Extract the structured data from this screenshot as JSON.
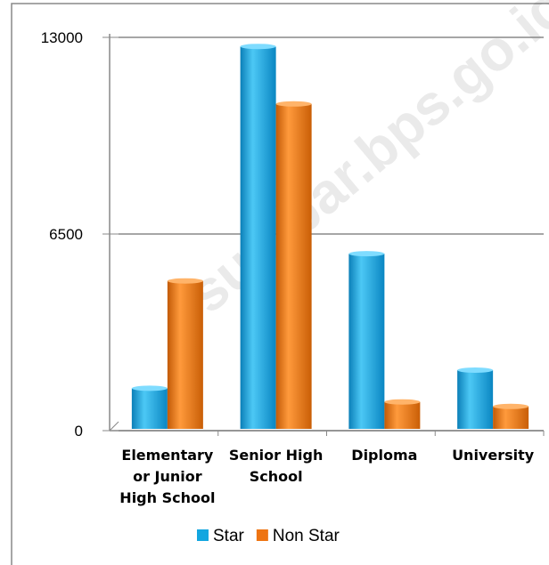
{
  "chart_data": {
    "type": "bar",
    "categories": [
      "Elementary or Junior High School",
      "Senior High School",
      "Diploma",
      "University"
    ],
    "series": [
      {
        "name": "Star",
        "color": "#12a6e0",
        "values": [
          1400,
          12700,
          5850,
          2000
        ]
      },
      {
        "name": "Non Star",
        "color": "#ee7412",
        "values": [
          4950,
          10800,
          950,
          800
        ]
      }
    ],
    "ylim": [
      0,
      13000
    ],
    "yticks": [
      0,
      6500,
      13000
    ],
    "grid": true,
    "legend": "bottom",
    "watermark": "sumbar.bps.go.id"
  }
}
